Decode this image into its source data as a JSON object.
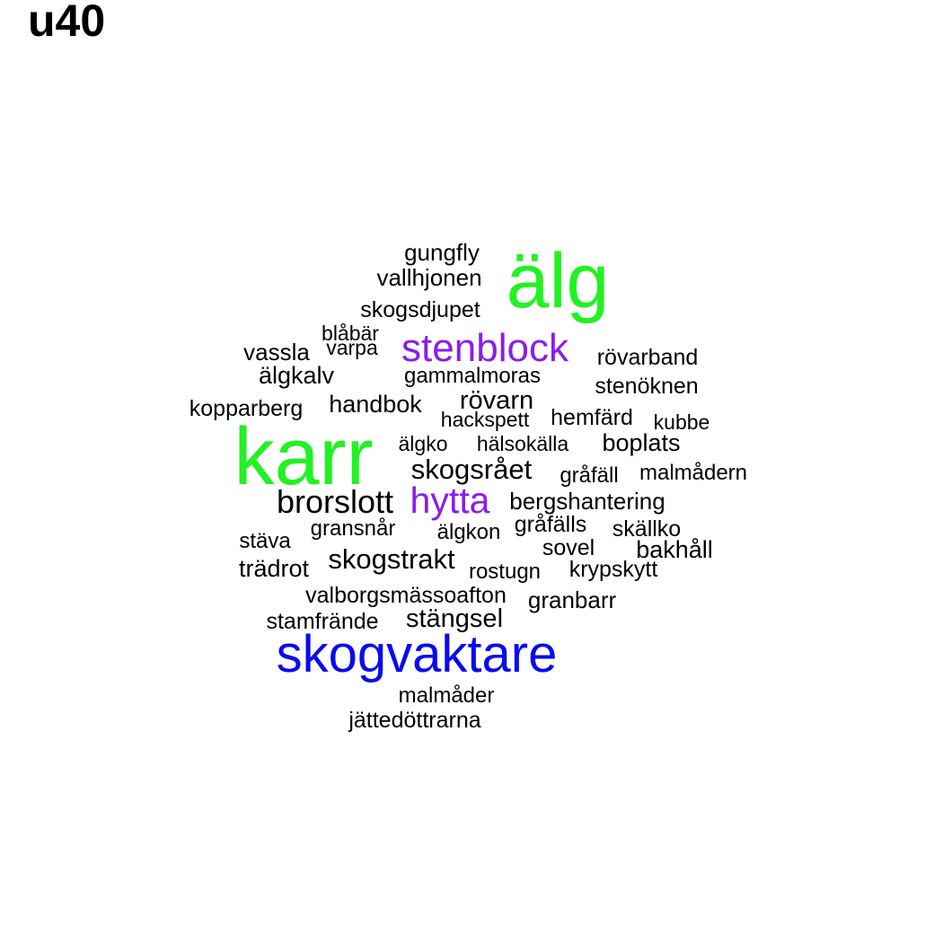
{
  "title": "u40",
  "colors": {
    "green": "#22f122",
    "purple": "#8b1de8",
    "blue": "#0a0af0",
    "black": "#000000"
  },
  "words": [
    {
      "text": "gungfly",
      "color": "black"
    },
    {
      "text": "vallhjonen",
      "color": "black"
    },
    {
      "text": "älg",
      "color": "green"
    },
    {
      "text": "skogsdjupet",
      "color": "black"
    },
    {
      "text": "blåbär",
      "color": "black"
    },
    {
      "text": "vassla",
      "color": "black"
    },
    {
      "text": "varpa",
      "color": "black"
    },
    {
      "text": "stenblock",
      "color": "purple"
    },
    {
      "text": "rövarband",
      "color": "black"
    },
    {
      "text": "älgkalv",
      "color": "black"
    },
    {
      "text": "gammalmoras",
      "color": "black"
    },
    {
      "text": "stenöknen",
      "color": "black"
    },
    {
      "text": "kopparberg",
      "color": "black"
    },
    {
      "text": "handbok",
      "color": "black"
    },
    {
      "text": "rövarn",
      "color": "black"
    },
    {
      "text": "hackspett",
      "color": "black"
    },
    {
      "text": "hemfärd",
      "color": "black"
    },
    {
      "text": "kubbe",
      "color": "black"
    },
    {
      "text": "karr",
      "color": "green"
    },
    {
      "text": "älgko",
      "color": "black"
    },
    {
      "text": "hälsokälla",
      "color": "black"
    },
    {
      "text": "boplats",
      "color": "black"
    },
    {
      "text": "skogsrået",
      "color": "black"
    },
    {
      "text": "gråfäll",
      "color": "black"
    },
    {
      "text": "malmådern",
      "color": "black"
    },
    {
      "text": "brorslott",
      "color": "black"
    },
    {
      "text": "hytta",
      "color": "purple"
    },
    {
      "text": "bergshantering",
      "color": "black"
    },
    {
      "text": "gransnår",
      "color": "black"
    },
    {
      "text": "älgkon",
      "color": "black"
    },
    {
      "text": "gråfälls",
      "color": "black"
    },
    {
      "text": "skällko",
      "color": "black"
    },
    {
      "text": "stäva",
      "color": "black"
    },
    {
      "text": "sovel",
      "color": "black"
    },
    {
      "text": "bakhåll",
      "color": "black"
    },
    {
      "text": "trädrot",
      "color": "black"
    },
    {
      "text": "skogstrakt",
      "color": "black"
    },
    {
      "text": "rostugn",
      "color": "black"
    },
    {
      "text": "krypskytt",
      "color": "black"
    },
    {
      "text": "valborgsmässoafton",
      "color": "black"
    },
    {
      "text": "granbarr",
      "color": "black"
    },
    {
      "text": "stamfrände",
      "color": "black"
    },
    {
      "text": "stängsel",
      "color": "black"
    },
    {
      "text": "skogvaktare",
      "color": "blue"
    },
    {
      "text": "malmåder",
      "color": "black"
    },
    {
      "text": "jättedöttrarna",
      "color": "black"
    }
  ]
}
